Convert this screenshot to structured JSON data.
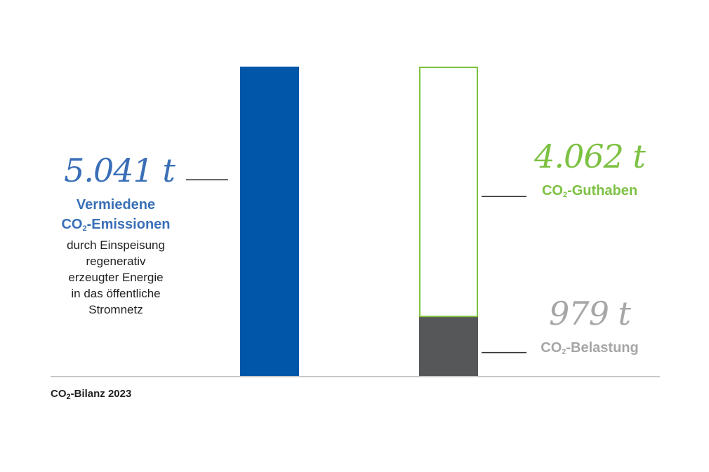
{
  "chart_data": {
    "type": "bar",
    "title": "",
    "unit": "t",
    "ylim": [
      0,
      5041
    ],
    "bars": [
      {
        "name": "avoided",
        "segments": [
          {
            "name": "Vermiedene CO2-Emissionen",
            "value": 5041,
            "fill": "#0056a8",
            "outline": false
          }
        ]
      },
      {
        "name": "balance",
        "segments": [
          {
            "name": "CO2-Belastung",
            "value": 979,
            "fill": "#555759",
            "outline": false
          },
          {
            "name": "CO2-Guthaben",
            "value": 4062,
            "fill": "#ffffff",
            "outline": true
          }
        ]
      }
    ]
  },
  "labels": {
    "avoided": {
      "value": "5.041 t",
      "title_line1": "Vermiedene",
      "title_line2_pre": "CO",
      "title_line2_sub": "2",
      "title_line2_post": "-Emissionen",
      "desc": [
        "durch Einspeisung",
        "regenerativ",
        "erzeugter Energie",
        "in das öffentliche",
        "Stromnetz"
      ]
    },
    "credit": {
      "value": "4.062 t",
      "pre": "CO",
      "sub": "2",
      "post": "-Guthaben"
    },
    "burden": {
      "value": "979 t",
      "pre": "CO",
      "sub": "2",
      "post": "-Belastung"
    }
  },
  "footer": {
    "pre": "CO",
    "sub": "2",
    "post": "-Bilanz 2023"
  },
  "colors": {
    "blue": "#0056a8",
    "value_blue": "#3a6fb7",
    "green": "#7dc142",
    "dark_grey": "#555759",
    "light_grey": "#a6a6a6",
    "axis": "#c8c8c8"
  }
}
